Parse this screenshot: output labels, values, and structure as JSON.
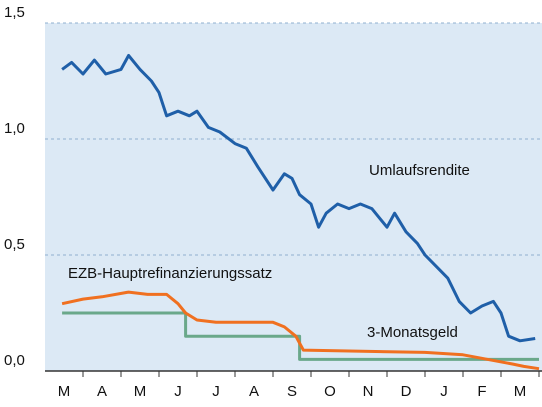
{
  "chart_data": {
    "type": "line",
    "xlim": [
      0,
      13
    ],
    "xticks": [
      {
        "value": 0.5,
        "label": "M"
      },
      {
        "value": 1.5,
        "label": "A"
      },
      {
        "value": 2.5,
        "label": "M"
      },
      {
        "value": 3.5,
        "label": "J"
      },
      {
        "value": 4.5,
        "label": "J"
      },
      {
        "value": 5.5,
        "label": "A"
      },
      {
        "value": 6.5,
        "label": "S"
      },
      {
        "value": 7.5,
        "label": "O"
      },
      {
        "value": 8.5,
        "label": "N"
      },
      {
        "value": 9.5,
        "label": "D"
      },
      {
        "value": 10.5,
        "label": "J"
      },
      {
        "value": 11.5,
        "label": "F"
      },
      {
        "value": 12.5,
        "label": "M"
      }
    ],
    "ylim": [
      0,
      1.5
    ],
    "yticks": [
      {
        "value": 0,
        "label": "0,0"
      },
      {
        "value": 0.5,
        "label": "0,5"
      },
      {
        "value": 1,
        "label": "1,0"
      },
      {
        "value": 1.5,
        "label": "1,5"
      }
    ],
    "grid": true,
    "annotations": [
      "Umlaufsrendite",
      "EZB-Hauptrefinanzierungssatz",
      "3-Monatsgeld"
    ],
    "series": [
      {
        "name": "Umlaufsrendite",
        "color": "#1f5fa8",
        "x": [
          0.45,
          0.7,
          1.0,
          1.3,
          1.6,
          2.0,
          2.2,
          2.5,
          2.8,
          3.0,
          3.2,
          3.5,
          3.8,
          4.0,
          4.3,
          4.6,
          5.0,
          5.3,
          5.6,
          6.0,
          6.3,
          6.5,
          6.7,
          7.0,
          7.2,
          7.4,
          7.7,
          8.0,
          8.3,
          8.6,
          9.0,
          9.2,
          9.5,
          9.8,
          10.0,
          10.3,
          10.6,
          10.9,
          11.2,
          11.5,
          11.8,
          12.0,
          12.2,
          12.5,
          12.9
        ],
        "values": [
          1.3,
          1.33,
          1.28,
          1.34,
          1.28,
          1.3,
          1.36,
          1.3,
          1.25,
          1.2,
          1.1,
          1.12,
          1.1,
          1.12,
          1.05,
          1.03,
          0.98,
          0.96,
          0.88,
          0.78,
          0.85,
          0.83,
          0.76,
          0.72,
          0.62,
          0.68,
          0.72,
          0.7,
          0.72,
          0.7,
          0.62,
          0.68,
          0.6,
          0.55,
          0.5,
          0.45,
          0.4,
          0.3,
          0.25,
          0.28,
          0.3,
          0.25,
          0.15,
          0.13,
          0.14
        ]
      },
      {
        "name": "EZB-Hauptrefinanzierungssatz",
        "color": "#6aa88a",
        "x": [
          0.45,
          3.7,
          3.7,
          6.7,
          6.7,
          13
        ],
        "values": [
          0.25,
          0.25,
          0.15,
          0.15,
          0.05,
          0.05
        ]
      },
      {
        "name": "3-Monatsgeld",
        "color": "#f07020",
        "x": [
          0.45,
          1.0,
          1.5,
          2.2,
          2.7,
          3.2,
          3.5,
          3.7,
          4.0,
          4.5,
          6.0,
          6.3,
          6.6,
          6.8,
          10.0,
          11.0,
          12.3,
          12.6,
          13.0
        ],
        "values": [
          0.29,
          0.31,
          0.32,
          0.34,
          0.33,
          0.33,
          0.29,
          0.25,
          0.22,
          0.21,
          0.21,
          0.19,
          0.15,
          0.09,
          0.08,
          0.07,
          0.03,
          0.02,
          0.01
        ]
      }
    ]
  }
}
